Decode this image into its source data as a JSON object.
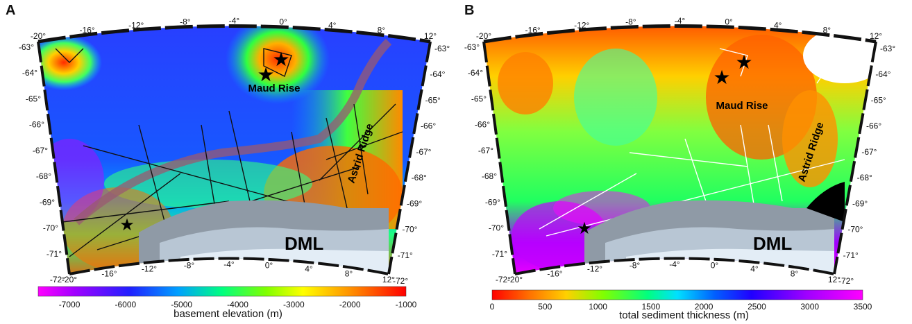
{
  "panel_a": {
    "label": "A",
    "features": {
      "rise": "Maud Rise",
      "ridge": "Astrid Ridge",
      "region": "DML"
    },
    "lon_ticks_top": [
      "-20°",
      "-16°",
      "-12°",
      "-8°",
      "-4°",
      "0°",
      "4°",
      "8°",
      "12°"
    ],
    "lon_ticks_bottom": [
      "-20°",
      "-16°",
      "-12°",
      "-8°",
      "-4°",
      "0°",
      "4°",
      "8°",
      "12°"
    ],
    "lat_ticks_left": [
      "-63°",
      "-64°",
      "-65°",
      "-66°",
      "-67°",
      "-68°",
      "-69°",
      "-70°",
      "-71°",
      "-72°"
    ],
    "lat_ticks_right": [
      "-63°",
      "-64°",
      "-65°",
      "-66°",
      "-67°",
      "-68°",
      "-69°",
      "-70°",
      "-71°",
      "-72°"
    ],
    "colorbar": {
      "title": "basement elevation  (m)",
      "ticks": [
        "-7000",
        "-6000",
        "-5000",
        "-4000",
        "-3000",
        "-2000",
        "-1000"
      ],
      "colors": [
        "#f0f",
        "#a0f",
        "#30f",
        "#00f",
        "#09f",
        "#0ff",
        "#0f8",
        "#4f0",
        "#cf0",
        "#ff0",
        "#fa0",
        "#f50",
        "#f00"
      ]
    }
  },
  "panel_b": {
    "label": "B",
    "features": {
      "rise": "Maud Rise",
      "ridge": "Astrid Ridge",
      "region": "DML"
    },
    "lon_ticks_top": [
      "-20°",
      "-16°",
      "-12°",
      "-8°",
      "-4°",
      "0°",
      "4°",
      "8°",
      "12°"
    ],
    "lon_ticks_bottom": [
      "-20°",
      "-16°",
      "-12°",
      "-8°",
      "-4°",
      "0°",
      "4°",
      "8°",
      "12°"
    ],
    "lat_ticks_left": [
      "-63°",
      "-64°",
      "-65°",
      "-66°",
      "-67°",
      "-68°",
      "-69°",
      "-70°",
      "-71°",
      "-72°"
    ],
    "lat_ticks_right": [
      "-63°",
      "-64°",
      "-65°",
      "-66°",
      "-67°",
      "-68°",
      "-69°",
      "-70°",
      "-71°",
      "-72°"
    ],
    "colorbar": {
      "title": "total sediment thickness (m)",
      "ticks": [
        "0",
        "500",
        "1000",
        "1500",
        "2000",
        "2500",
        "3000",
        "3500"
      ],
      "colors": [
        "#f00",
        "#f60",
        "#fc0",
        "#ff0",
        "#8f0",
        "#0f4",
        "#0ff",
        "#09f",
        "#00f",
        "#40f",
        "#a0f",
        "#f0f"
      ]
    }
  }
}
